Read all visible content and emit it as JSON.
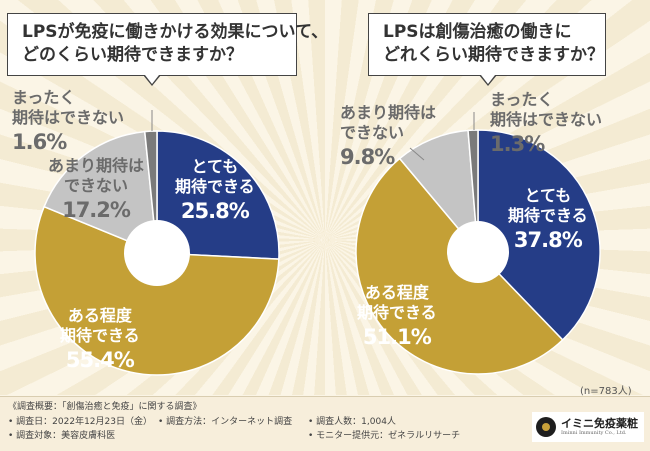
{
  "chart_data": [
    {
      "type": "pie",
      "title": "LPSが免疫に働きかける効果について、\nどのくらい期待できますか？",
      "slices": [
        {
          "label": "とても\n期待できる",
          "value": 25.8,
          "pct_text": "25.8%",
          "color": "#253d87"
        },
        {
          "label": "ある程度\n期待できる",
          "value": 55.4,
          "pct_text": "55.4%",
          "color": "#c4a036"
        },
        {
          "label": "あまり期待は\nできない",
          "value": 17.2,
          "pct_text": "17.2%",
          "color": "#c4c4c4"
        },
        {
          "label": "まったく\n期待はできない",
          "value": 1.6,
          "pct_text": "1.6%",
          "color": "#7a7a7a"
        }
      ]
    },
    {
      "type": "pie",
      "title": "LPSは創傷治癒の働きに\nどれくらい期待できますか？",
      "slices": [
        {
          "label": "とても\n期待できる",
          "value": 37.8,
          "pct_text": "37.8%",
          "color": "#253d87"
        },
        {
          "label": "ある程度\n期待できる",
          "value": 51.1,
          "pct_text": "51.1%",
          "color": "#c4a036"
        },
        {
          "label": "あまり期待は\nできない",
          "value": 9.8,
          "pct_text": "9.8%",
          "color": "#c4c4c4"
        },
        {
          "label": "まったく\n期待はできない",
          "value": 1.3,
          "pct_text": "1.3%",
          "color": "#7a7a7a"
        }
      ]
    }
  ],
  "labels": {
    "c1": {
      "s0_a": "とても",
      "s0_b": "期待できる",
      "s0_pct": "25.8%",
      "s1_a": "ある程度",
      "s1_b": "期待できる",
      "s1_pct": "55.4%",
      "s2_a": "あまり期待は",
      "s2_b": "できない",
      "s2_pct": "17.2%",
      "s3_a": "まったく",
      "s3_b": "期待はできない",
      "s3_pct": "1.6%"
    },
    "c2": {
      "s0_a": "とても",
      "s0_b": "期待できる",
      "s0_pct": "37.8%",
      "s1_a": "ある程度",
      "s1_b": "期待できる",
      "s1_pct": "51.1%",
      "s2_a": "あまり期待は",
      "s2_b": "できない",
      "s2_pct": "9.8%",
      "s3_a": "まったく",
      "s3_b": "期待はできない",
      "s3_pct": "1.3%"
    }
  },
  "sample_note": "(n=783人)",
  "footer": {
    "survey_title": "《調査概要：「創傷治癒と免疫」に関する調査》",
    "date": "• 調査日：2022年12月23日（金）",
    "method": "• 調査方法：インターネット調査",
    "count": "• 調査人数：1,004人",
    "target": "• 調査対象：美容皮膚科医",
    "provider": "• モニター提供元：ゼネラルリサーチ"
  },
  "logo": {
    "name": "イミニ免疫薬粧",
    "sub": "Iminni Immunity Co., Ltd."
  },
  "colors": {
    "navy": "#253d87",
    "gold": "#c4a036",
    "light_gray": "#c4c4c4",
    "dark_gray": "#7a7a7a",
    "background": "#fbf5e6"
  }
}
